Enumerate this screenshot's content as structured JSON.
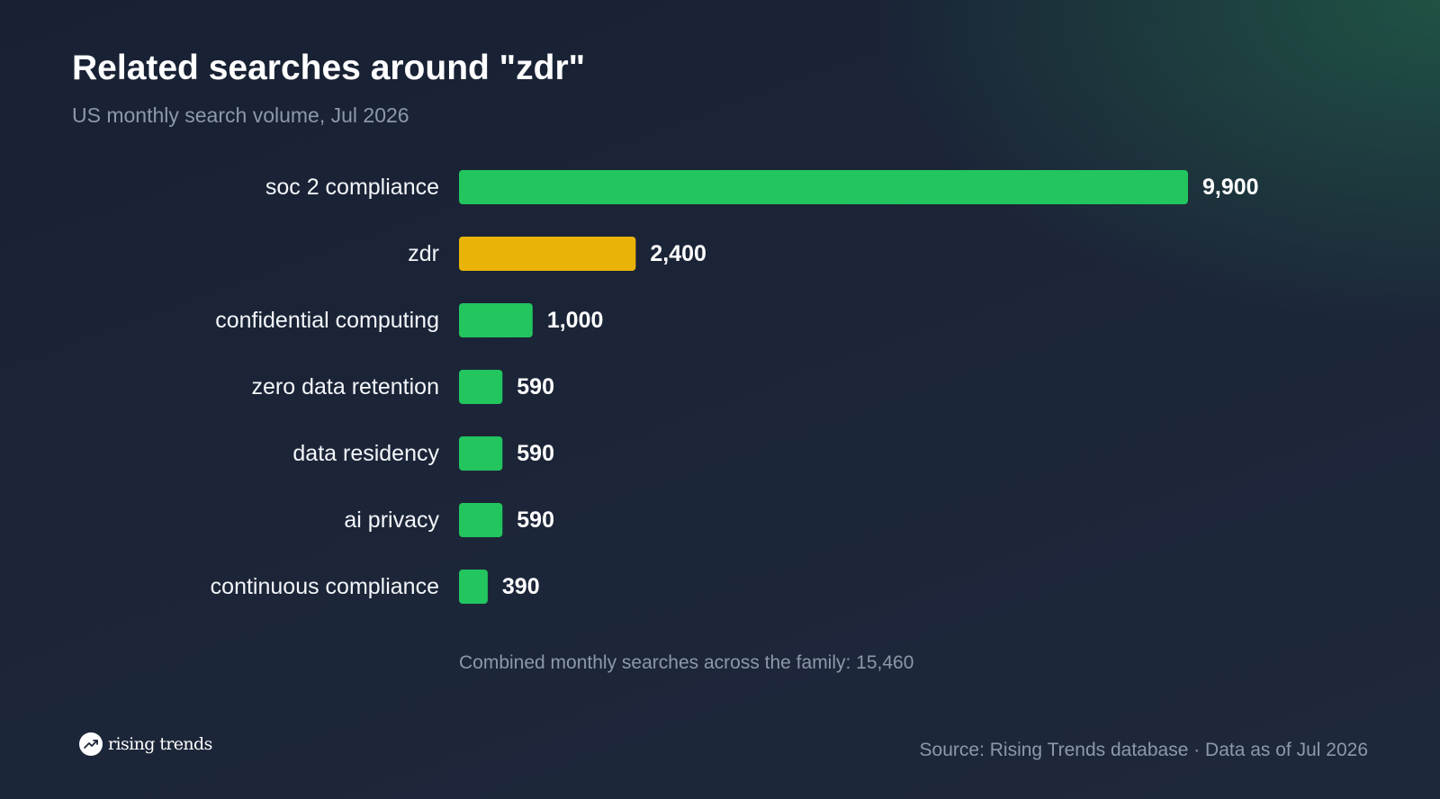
{
  "chart_data": {
    "type": "bar",
    "orientation": "horizontal",
    "title": "Related searches around \"zdr\"",
    "subtitle": "US monthly search volume, Jul 2026",
    "categories": [
      "soc 2 compliance",
      "zdr",
      "confidential computing",
      "zero data retention",
      "data residency",
      "ai privacy",
      "continuous compliance"
    ],
    "values": [
      9900,
      2400,
      1000,
      590,
      590,
      590,
      390
    ],
    "value_labels": [
      "9,900",
      "2,400",
      "1,000",
      "590",
      "590",
      "590",
      "390"
    ],
    "highlight_category": "zdr",
    "colors": {
      "default": "#22c55e",
      "highlight": "#eab308"
    },
    "xlim": [
      0,
      9900
    ],
    "grid": false,
    "legend": "none"
  },
  "note": "Combined monthly searches across the family: 15,460",
  "brand": {
    "name": "rising trends",
    "icon": "trending-up-icon"
  },
  "source": "Source: Rising Trends database · Data as of Jul 2026"
}
